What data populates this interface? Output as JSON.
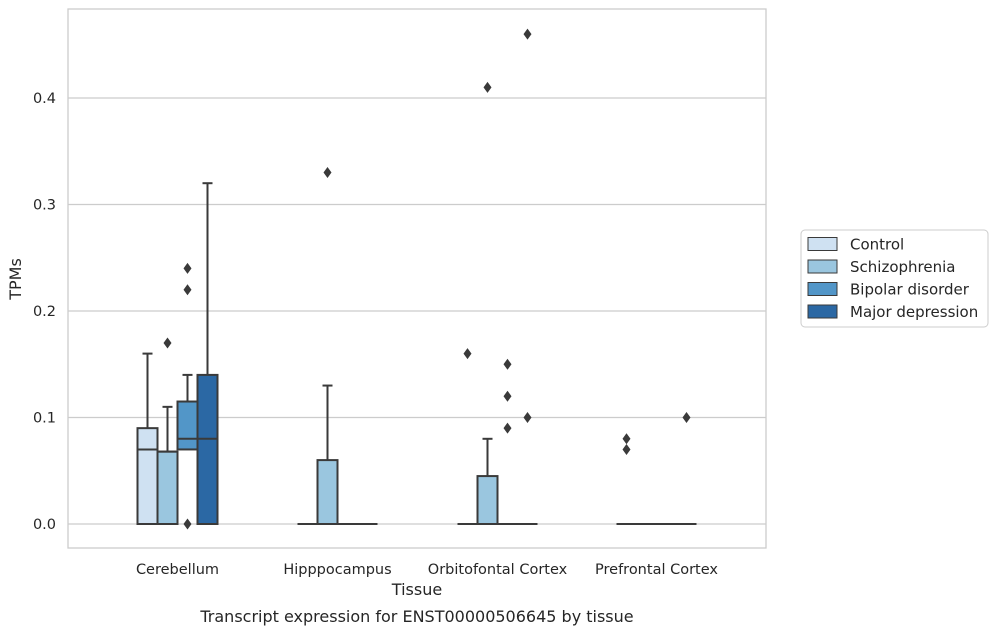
{
  "chart_data": {
    "type": "box",
    "caption": "Transcript expression for ENST00000506645 by tissue",
    "xlabel": "Tissue",
    "ylabel": "TPMs",
    "ylim": [
      -0.022,
      0.485
    ],
    "yticks": [
      "0.0",
      "0.1",
      "0.2",
      "0.3",
      "0.4"
    ],
    "grid": "horizontal",
    "legend_position": "right",
    "categories": [
      "Cerebellum",
      "Hipppocampus",
      "Orbitofontal Cortex",
      "Prefrontal Cortex"
    ],
    "series": [
      {
        "name": "Control",
        "color": "#cfe1f2",
        "boxes": [
          {
            "q1": 0.0,
            "median": 0.07,
            "q3": 0.09,
            "whisker_low": 0.0,
            "whisker_high": 0.16,
            "outliers": []
          },
          {
            "q1": 0.0,
            "median": 0.0,
            "q3": 0.0,
            "whisker_low": 0.0,
            "whisker_high": 0.0,
            "outliers": []
          },
          {
            "q1": 0.0,
            "median": 0.0,
            "q3": 0.0,
            "whisker_low": 0.0,
            "whisker_high": 0.0,
            "outliers": [
              0.16
            ]
          },
          {
            "q1": 0.0,
            "median": 0.0,
            "q3": 0.0,
            "whisker_low": 0.0,
            "whisker_high": 0.0,
            "outliers": [
              0.08,
              0.07
            ]
          }
        ]
      },
      {
        "name": "Schizophrenia",
        "color": "#9ac6df",
        "boxes": [
          {
            "q1": 0.0,
            "median": 0.068,
            "q3": 0.068,
            "whisker_low": 0.0,
            "whisker_high": 0.11,
            "outliers": [
              0.17
            ]
          },
          {
            "q1": 0.0,
            "median": 0.0,
            "q3": 0.06,
            "whisker_low": 0.0,
            "whisker_high": 0.13,
            "outliers": [
              0.33
            ]
          },
          {
            "q1": 0.0,
            "median": 0.0,
            "q3": 0.045,
            "whisker_low": 0.0,
            "whisker_high": 0.08,
            "outliers": [
              0.41
            ]
          },
          {
            "q1": 0.0,
            "median": 0.0,
            "q3": 0.0,
            "whisker_low": 0.0,
            "whisker_high": 0.0,
            "outliers": []
          }
        ]
      },
      {
        "name": "Bipolar disorder",
        "color": "#5296c8",
        "boxes": [
          {
            "q1": 0.07,
            "median": 0.08,
            "q3": 0.115,
            "whisker_low": 0.07,
            "whisker_high": 0.14,
            "outliers": [
              0.24,
              0.22,
              0.0
            ]
          },
          {
            "q1": 0.0,
            "median": 0.0,
            "q3": 0.0,
            "whisker_low": 0.0,
            "whisker_high": 0.0,
            "outliers": []
          },
          {
            "q1": 0.0,
            "median": 0.0,
            "q3": 0.0,
            "whisker_low": 0.0,
            "whisker_high": 0.0,
            "outliers": [
              0.15,
              0.12,
              0.09
            ]
          },
          {
            "q1": 0.0,
            "median": 0.0,
            "q3": 0.0,
            "whisker_low": 0.0,
            "whisker_high": 0.0,
            "outliers": []
          }
        ]
      },
      {
        "name": "Major depression",
        "color": "#2b68a4",
        "boxes": [
          {
            "q1": 0.0,
            "median": 0.08,
            "q3": 0.14,
            "whisker_low": 0.0,
            "whisker_high": 0.32,
            "outliers": []
          },
          {
            "q1": 0.0,
            "median": 0.0,
            "q3": 0.0,
            "whisker_low": 0.0,
            "whisker_high": 0.0,
            "outliers": []
          },
          {
            "q1": 0.0,
            "median": 0.0,
            "q3": 0.0,
            "whisker_low": 0.0,
            "whisker_high": 0.0,
            "outliers": [
              0.46,
              0.1
            ]
          },
          {
            "q1": 0.0,
            "median": 0.0,
            "q3": 0.0,
            "whisker_low": 0.0,
            "whisker_high": 0.0,
            "outliers": [
              0.1
            ]
          }
        ]
      }
    ]
  }
}
